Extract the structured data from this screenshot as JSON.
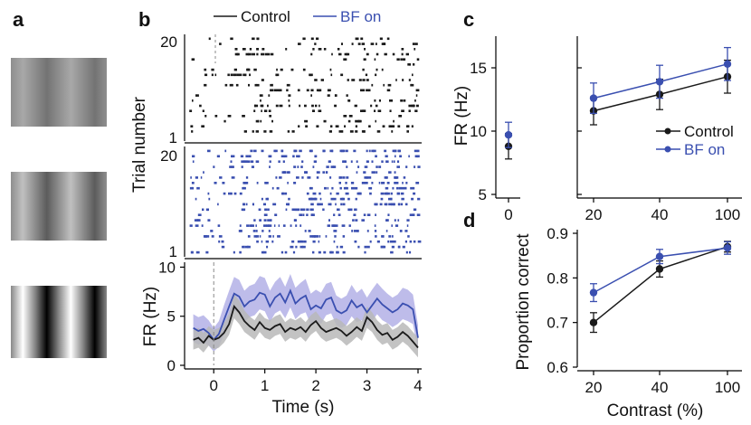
{
  "panel_labels": {
    "a": "a",
    "b": "b",
    "c": "c",
    "d": "d"
  },
  "colors": {
    "control": "#1a1a1a",
    "bf": "#3a4fb0",
    "control_shade": "#b9b9b9",
    "bf_shade": "#b3b0e6"
  },
  "chart_data": [
    {
      "panel": "a",
      "type": "image",
      "content": "three sinusoidal grating stimuli of increasing contrast",
      "contrasts_percent": [
        20,
        40,
        100
      ]
    },
    {
      "panel": "b",
      "type": "raster",
      "legend": [
        "Control",
        "BF on"
      ],
      "ylabel": "Trial number",
      "y_ticks": [
        "1",
        "20"
      ],
      "trials": 20,
      "time_range_s": [
        -0.5,
        4
      ],
      "control_spike_density_hz": {
        "pre": 1.5,
        "post": 4
      },
      "bf_spike_density_hz": {
        "pre": 3,
        "post": 7
      }
    },
    {
      "panel": "b",
      "type": "line",
      "xlabel": "Time (s)",
      "ylabel": "FR (Hz)",
      "x_ticks": [
        "0",
        "1",
        "2",
        "3",
        "4"
      ],
      "y_ticks": [
        "0",
        "5",
        "10"
      ],
      "xlim": [
        -0.5,
        4
      ],
      "ylim": [
        0,
        10.5
      ],
      "x": [
        -0.4,
        -0.3,
        -0.2,
        -0.1,
        0,
        0.1,
        0.2,
        0.3,
        0.4,
        0.5,
        0.6,
        0.7,
        0.8,
        0.9,
        1,
        1.1,
        1.2,
        1.3,
        1.4,
        1.5,
        1.6,
        1.7,
        1.8,
        1.9,
        2,
        2.1,
        2.2,
        2.3,
        2.4,
        2.5,
        2.6,
        2.7,
        2.8,
        2.9,
        3,
        3.1,
        3.2,
        3.3,
        3.4,
        3.5,
        3.6,
        3.7,
        3.8,
        3.9,
        4
      ],
      "series": [
        {
          "name": "Control",
          "values": [
            2.6,
            2.8,
            2.3,
            3.0,
            2.6,
            2.8,
            3.3,
            4.2,
            6.0,
            5.4,
            4.5,
            4.0,
            3.6,
            4.4,
            3.8,
            3.6,
            4.0,
            4.2,
            3.4,
            3.8,
            3.6,
            3.9,
            3.4,
            4.1,
            4.5,
            3.8,
            3.4,
            3.6,
            3.8,
            3.5,
            3.0,
            3.4,
            3.9,
            3.5,
            4.9,
            4.4,
            3.6,
            3.1,
            3.3,
            2.6,
            2.9,
            3.4,
            3.0,
            2.4,
            1.8
          ],
          "band": [
            1.0,
            1.0,
            1.0,
            1.0,
            1.0,
            1.0,
            1.0,
            1.1,
            1.2,
            1.2,
            1.1,
            1.0,
            1.0,
            1.0,
            1.0,
            1.0,
            1.0,
            1.0,
            1.0,
            1.0,
            1.0,
            1.0,
            1.0,
            1.0,
            1.0,
            1.0,
            1.0,
            1.0,
            1.0,
            1.0,
            1.0,
            1.0,
            1.0,
            1.0,
            1.1,
            1.0,
            1.0,
            1.0,
            1.0,
            1.0,
            1.0,
            1.0,
            1.0,
            1.0,
            1.0
          ]
        },
        {
          "name": "BF on",
          "values": [
            3.8,
            3.5,
            3.7,
            3.3,
            2.6,
            3.2,
            4.6,
            6.0,
            7.3,
            7.0,
            6.0,
            6.5,
            6.7,
            7.4,
            7.2,
            6.0,
            6.9,
            7.3,
            6.4,
            7.6,
            6.3,
            6.8,
            7.1,
            5.7,
            6.1,
            5.8,
            6.7,
            6.9,
            5.6,
            5.3,
            5.6,
            6.6,
            5.9,
            6.2,
            5.4,
            6.1,
            6.8,
            6.2,
            5.8,
            5.4,
            5.7,
            6.3,
            6.1,
            5.7,
            2.8
          ],
          "band": [
            1.4,
            1.4,
            1.4,
            1.3,
            1.2,
            1.3,
            1.5,
            1.6,
            1.7,
            1.7,
            1.6,
            1.6,
            1.6,
            1.7,
            1.7,
            1.6,
            1.6,
            1.7,
            1.6,
            1.7,
            1.6,
            1.6,
            1.7,
            1.6,
            1.6,
            1.6,
            1.6,
            1.6,
            1.5,
            1.5,
            1.5,
            1.6,
            1.5,
            1.6,
            1.5,
            1.6,
            1.6,
            1.6,
            1.5,
            1.5,
            1.5,
            1.6,
            1.6,
            1.5,
            1.3
          ]
        }
      ]
    },
    {
      "panel": "c",
      "type": "line",
      "xlabel": "",
      "ylabel": "FR (Hz)",
      "x_ticks": [
        "0",
        "20",
        "40",
        "100"
      ],
      "y_ticks": [
        "5",
        "10",
        "15"
      ],
      "ylim": [
        5,
        17.5
      ],
      "x": [
        0,
        20,
        40,
        100
      ],
      "legend": "bottom-right",
      "series": [
        {
          "name": "Control",
          "values": [
            8.8,
            11.6,
            12.9,
            14.3
          ],
          "errors": [
            1.0,
            1.1,
            1.2,
            1.3
          ]
        },
        {
          "name": "BF on",
          "values": [
            9.7,
            12.6,
            13.9,
            15.3
          ],
          "errors": [
            1.0,
            1.2,
            1.3,
            1.3
          ]
        }
      ]
    },
    {
      "panel": "d",
      "type": "line",
      "xlabel": "Contrast (%)",
      "ylabel": "Proportion correct",
      "x_ticks": [
        "20",
        "40",
        "100"
      ],
      "y_ticks": [
        "0.6",
        "0.7",
        "0.8",
        "0.9"
      ],
      "ylim": [
        0.6,
        0.9
      ],
      "x": [
        20,
        40,
        100
      ],
      "series": [
        {
          "name": "Control",
          "values": [
            0.7,
            0.82,
            0.87
          ],
          "errors": [
            0.022,
            0.018,
            0.012
          ]
        },
        {
          "name": "BF on",
          "values": [
            0.767,
            0.848,
            0.867
          ],
          "errors": [
            0.02,
            0.016,
            0.014
          ]
        }
      ]
    }
  ]
}
